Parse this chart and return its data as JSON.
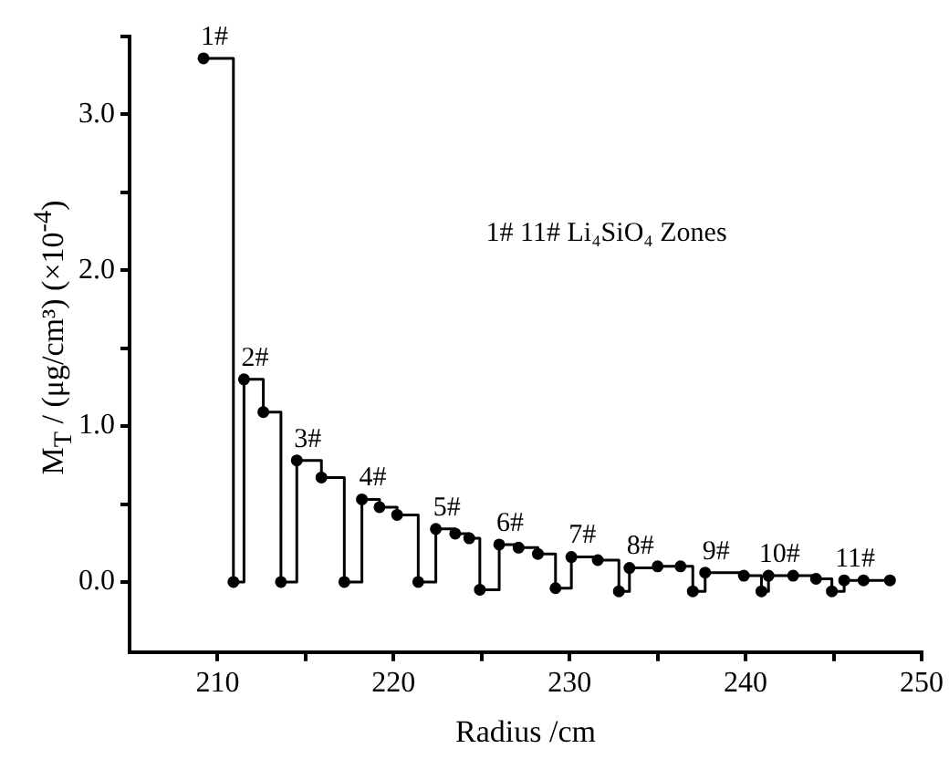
{
  "chart_data": {
    "type": "step",
    "xlabel": "Radius /cm",
    "ylabel": "M$_{T}$ / (μg/cm³) (×10$^{-4}$)",
    "x": [
      209.2,
      210.9,
      211.5,
      212.6,
      213.6,
      214.5,
      215.9,
      217.2,
      218.2,
      219.2,
      220.2,
      221.4,
      222.4,
      223.5,
      224.3,
      224.9,
      226.0,
      227.1,
      228.2,
      229.2,
      230.1,
      231.6,
      232.8,
      233.4,
      235.0,
      236.3,
      237.0,
      237.7,
      239.9,
      240.9,
      241.3,
      242.7,
      244.0,
      244.9,
      245.6,
      246.7,
      248.2
    ],
    "values": [
      3.36,
      0,
      1.3,
      1.09,
      0,
      0.78,
      0.67,
      0,
      0.53,
      0.48,
      0.43,
      0,
      0.34,
      0.31,
      0.28,
      -0.05,
      0.24,
      0.22,
      0.18,
      -0.04,
      0.16,
      0.14,
      -0.06,
      0.09,
      0.1,
      0.1,
      -0.06,
      0.06,
      0.04,
      -0.06,
      0.04,
      0.04,
      0.02,
      -0.06,
      0.01,
      0.01,
      0.01
    ],
    "color": "#000000",
    "marker": "circle",
    "line_style": "solid",
    "grid": false,
    "legend": false,
    "xlim": [
      205,
      250
    ],
    "xticks": [
      210,
      {
        "value": 215,
        "label": null
      },
      220,
      {
        "value": 225,
        "label": null
      },
      230,
      {
        "value": 235,
        "label": null
      },
      240,
      {
        "value": 245,
        "label": null
      },
      250
    ],
    "ylim": [
      -0.45,
      3.5
    ],
    "yticks": [
      {
        "value": 0,
        "label": "0.0"
      },
      {
        "value": 0.5,
        "label": null
      },
      {
        "value": 1,
        "label": "1.0"
      },
      {
        "value": 1.5,
        "label": null
      },
      {
        "value": 2,
        "label": "2.0"
      },
      {
        "value": 2.5,
        "label": null
      },
      {
        "value": 3,
        "label": "3.0"
      },
      {
        "value": 3.5,
        "label": null
      }
    ],
    "annotations": [
      {
        "text": "1#",
        "x": 209.2,
        "y": 3.36
      },
      {
        "text": "2#",
        "x": 211.5,
        "y": 1.3
      },
      {
        "text": "3#",
        "x": 214.5,
        "y": 0.78
      },
      {
        "text": "4#",
        "x": 218.2,
        "y": 0.53
      },
      {
        "text": "5#",
        "x": 222.4,
        "y": 0.34
      },
      {
        "text": "6#",
        "x": 226.0,
        "y": 0.24
      },
      {
        "text": "7#",
        "x": 230.1,
        "y": 0.16
      },
      {
        "text": "8#",
        "x": 233.4,
        "y": 0.09
      },
      {
        "text": "9#",
        "x": 237.7,
        "y": 0.06
      },
      {
        "text": "10#",
        "x": 241.3,
        "y": 0.04
      },
      {
        "text": "11#",
        "x": 245.6,
        "y": 0.01
      },
      "1# 11# Li₄SiO₄ Zones"
    ]
  }
}
